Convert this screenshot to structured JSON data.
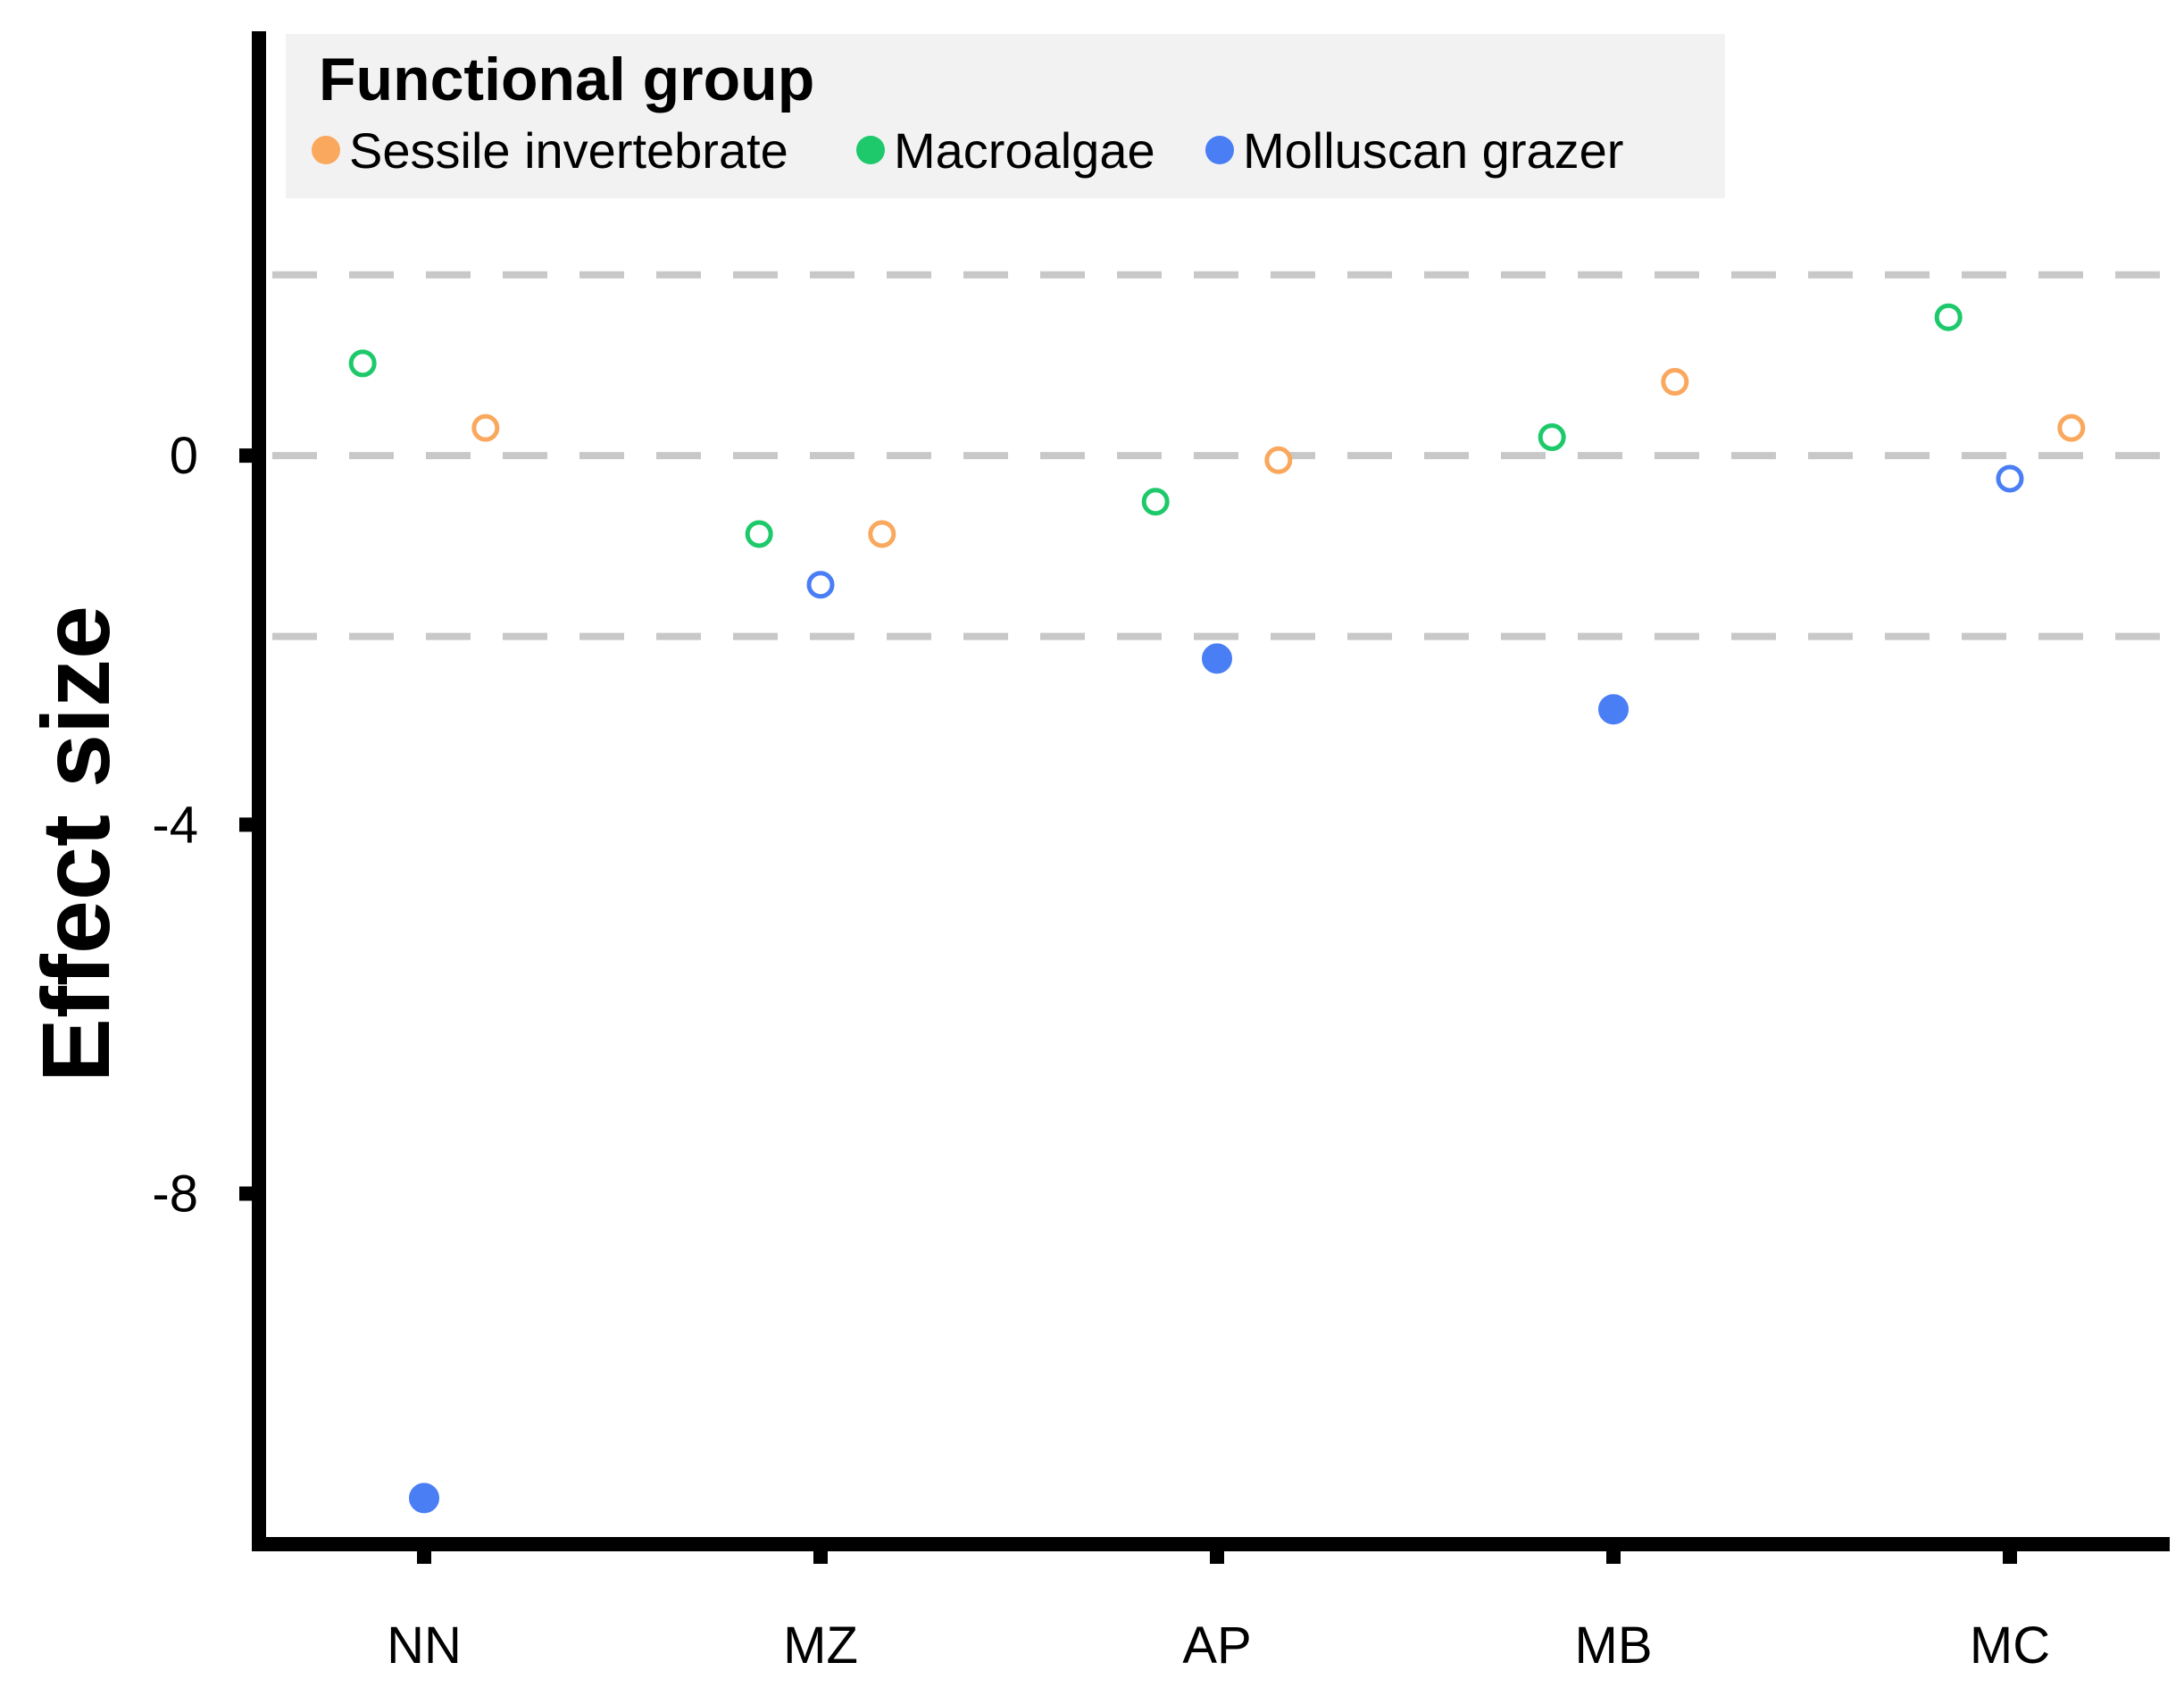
{
  "chart_data": {
    "type": "scatter",
    "title": "",
    "xlabel": "",
    "ylabel": "Effect size",
    "categories": [
      "NN",
      "MZ",
      "AP",
      "MB",
      "MC"
    ],
    "yticks": [
      0,
      -4,
      -8
    ],
    "ylim": [
      -11.8,
      4.6
    ],
    "reference_lines": [
      1.96,
      0,
      -1.96
    ],
    "legend": {
      "title": "Functional group",
      "position": "top",
      "entries": [
        {
          "name": "Sessile invertebrate",
          "color": "#F9A85D"
        },
        {
          "name": "Macroalgae",
          "color": "#1DC96A"
        },
        {
          "name": "Molluscan grazer",
          "color": "#4A7EF5"
        }
      ]
    },
    "series": [
      {
        "name": "Macroalgae",
        "color": "#1DC96A",
        "offset": -0.155,
        "values": [
          1.0,
          -0.85,
          -0.5,
          0.2,
          1.5
        ],
        "filled": [
          false,
          false,
          false,
          false,
          false
        ]
      },
      {
        "name": "Molluscan grazer",
        "color": "#4A7EF5",
        "offset": 0.0,
        "values": [
          -11.3,
          -1.4,
          -2.2,
          -2.75,
          -0.25
        ],
        "filled": [
          true,
          false,
          true,
          true,
          false
        ]
      },
      {
        "name": "Sessile invertebrate",
        "color": "#F9A85D",
        "offset": 0.155,
        "values": [
          0.3,
          -0.85,
          -0.05,
          0.8,
          0.3
        ],
        "filled": [
          false,
          false,
          false,
          false,
          false
        ]
      }
    ]
  }
}
